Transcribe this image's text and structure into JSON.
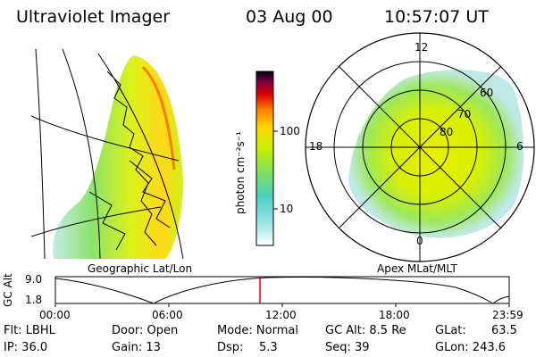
{
  "header": {
    "instrument": "Ultraviolet Imager",
    "date": "03 Aug 00",
    "time": "10:57:07 UT"
  },
  "left_panel": {
    "label": "Geographic Lat/Lon"
  },
  "right_panel": {
    "label": "Apex MLat/MLT",
    "mlt_labels": [
      "12",
      "18",
      "6",
      "0"
    ],
    "mlat_labels": [
      "60",
      "70",
      "80"
    ]
  },
  "colorbar": {
    "unit_label": "photon cm⁻²s⁻¹",
    "tick_labels": [
      "100",
      "10"
    ],
    "colors": [
      "#ffffff",
      "#4dd0c8",
      "#7ee05a",
      "#c8f000",
      "#ffd400",
      "#ff7f00",
      "#d40000",
      "#800040",
      "#000010"
    ]
  },
  "altitude_plot": {
    "ylabel": "GC Alt",
    "y_ticks": [
      "9.0",
      "1.8"
    ],
    "x_ticks": [
      "00:00",
      "06:00",
      "12:00",
      "18:00",
      "23:59"
    ],
    "marker_color": "#e00000"
  },
  "info": {
    "flt": "Flt: LBHL",
    "ip": "IP: 36.0",
    "door": "Door: Open",
    "gain": "Gain: 13",
    "mode": "Mode: Normal",
    "dsp_label": "Dsp:",
    "dsp_value": "5.3",
    "gc_alt": "GC Alt: 8.5 Re",
    "seq": "Seq: 39",
    "glat": "GLat:",
    "glat_value": "63.5",
    "glon": "GLon: 243.6"
  }
}
